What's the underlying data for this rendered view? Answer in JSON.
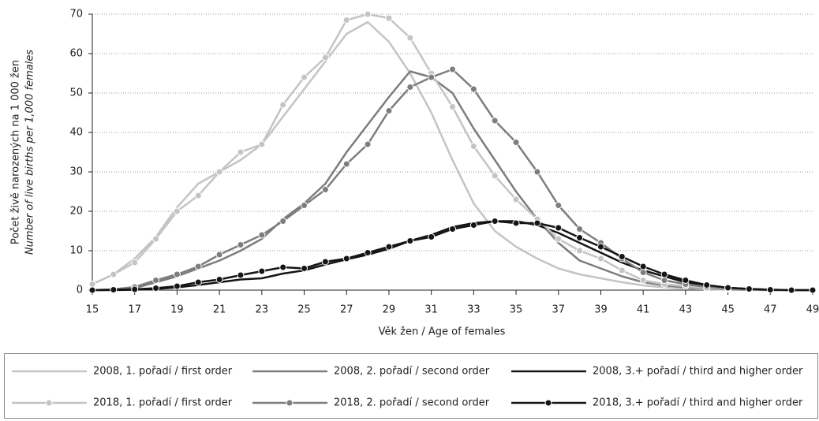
{
  "chart_data": {
    "type": "line",
    "ylabel": "Počet živě narozených na 1 000 žen",
    "ylabel_en": "Number of live births per 1,000 females",
    "xlabel": "Věk žen / Age of females",
    "x": [
      15,
      16,
      17,
      18,
      19,
      20,
      21,
      22,
      23,
      24,
      25,
      26,
      27,
      28,
      29,
      30,
      31,
      32,
      33,
      34,
      35,
      36,
      37,
      38,
      39,
      40,
      41,
      42,
      43,
      44,
      45,
      46,
      47,
      48,
      49
    ],
    "xlim": [
      15,
      49
    ],
    "xticks": [
      15,
      17,
      19,
      21,
      23,
      25,
      27,
      29,
      31,
      33,
      35,
      37,
      39,
      41,
      43,
      45,
      47,
      49
    ],
    "ylim": [
      0,
      70
    ],
    "yticks": [
      0,
      10,
      20,
      30,
      40,
      50,
      60,
      70
    ],
    "grid": true,
    "series": [
      {
        "name": "2008, 1. pořadí / first order",
        "color": "#c4c4c4",
        "markers": false,
        "values": [
          1.5,
          4,
          8,
          13.5,
          21,
          27,
          30,
          33,
          37,
          44,
          51,
          58,
          65,
          68,
          63,
          55,
          45,
          33,
          22,
          15,
          11,
          8,
          5.5,
          4,
          3,
          2,
          1.2,
          0.7,
          0.4,
          0.2,
          0.1,
          0.05,
          0,
          0,
          0
        ]
      },
      {
        "name": "2008, 2. pořadí / second order",
        "color": "#7d7d7d",
        "markers": false,
        "values": [
          0,
          0.2,
          0.5,
          2,
          3.5,
          5.5,
          7.5,
          10,
          13,
          18,
          22,
          27,
          35,
          42,
          49,
          55.5,
          54,
          50,
          41,
          33,
          25,
          18,
          12,
          7.5,
          5.5,
          3.5,
          2,
          1.2,
          0.7,
          0.4,
          0.2,
          0.1,
          0,
          0,
          0
        ]
      },
      {
        "name": "2008, 3.+ pořadí / third and higher order",
        "color": "#151515",
        "markers": false,
        "values": [
          0,
          0,
          0.1,
          0.3,
          0.7,
          1.3,
          2,
          2.7,
          3,
          4.2,
          5,
          6.5,
          7.8,
          9,
          10.5,
          12.5,
          14,
          16,
          17,
          17.5,
          17.5,
          16.5,
          14.5,
          12,
          9.5,
          7,
          5,
          3.5,
          2,
          1.2,
          0.6,
          0.3,
          0.1,
          0,
          0
        ]
      },
      {
        "name": "2018, 1. pořadí / first order",
        "color": "#c4c4c4",
        "markers": true,
        "values": [
          1.5,
          4,
          7,
          13,
          20,
          24,
          30,
          35,
          37,
          47,
          54,
          59,
          68.5,
          70,
          69,
          64,
          55,
          46.5,
          36.5,
          29,
          23,
          18,
          13,
          10,
          8,
          5,
          2.5,
          1.5,
          1,
          0.5,
          0.3,
          0.2,
          0.1,
          0,
          0
        ]
      },
      {
        "name": "2018, 2. pořadí / second order",
        "color": "#7d7d7d",
        "markers": true,
        "values": [
          0,
          0.2,
          0.8,
          2.5,
          4,
          6,
          9,
          11.5,
          14,
          17.5,
          21.5,
          25.5,
          32,
          37,
          45.5,
          51.5,
          54,
          56,
          51,
          43,
          37.5,
          30,
          21.5,
          15.5,
          12,
          8,
          4.5,
          2.5,
          1.5,
          0.8,
          0.4,
          0.2,
          0.1,
          0,
          0
        ]
      },
      {
        "name": "2018, 3.+ pořadí / third and higher order",
        "color": "#151515",
        "markers": true,
        "values": [
          0,
          0.1,
          0.2,
          0.5,
          1,
          2,
          2.7,
          3.8,
          4.8,
          5.8,
          5.5,
          7.2,
          8,
          9.5,
          11,
          12.5,
          13.5,
          15.5,
          16.5,
          17.5,
          17,
          17,
          15.8,
          13.3,
          11,
          8.5,
          6,
          4,
          2.5,
          1.3,
          0.6,
          0.3,
          0.1,
          0,
          0
        ]
      }
    ]
  }
}
